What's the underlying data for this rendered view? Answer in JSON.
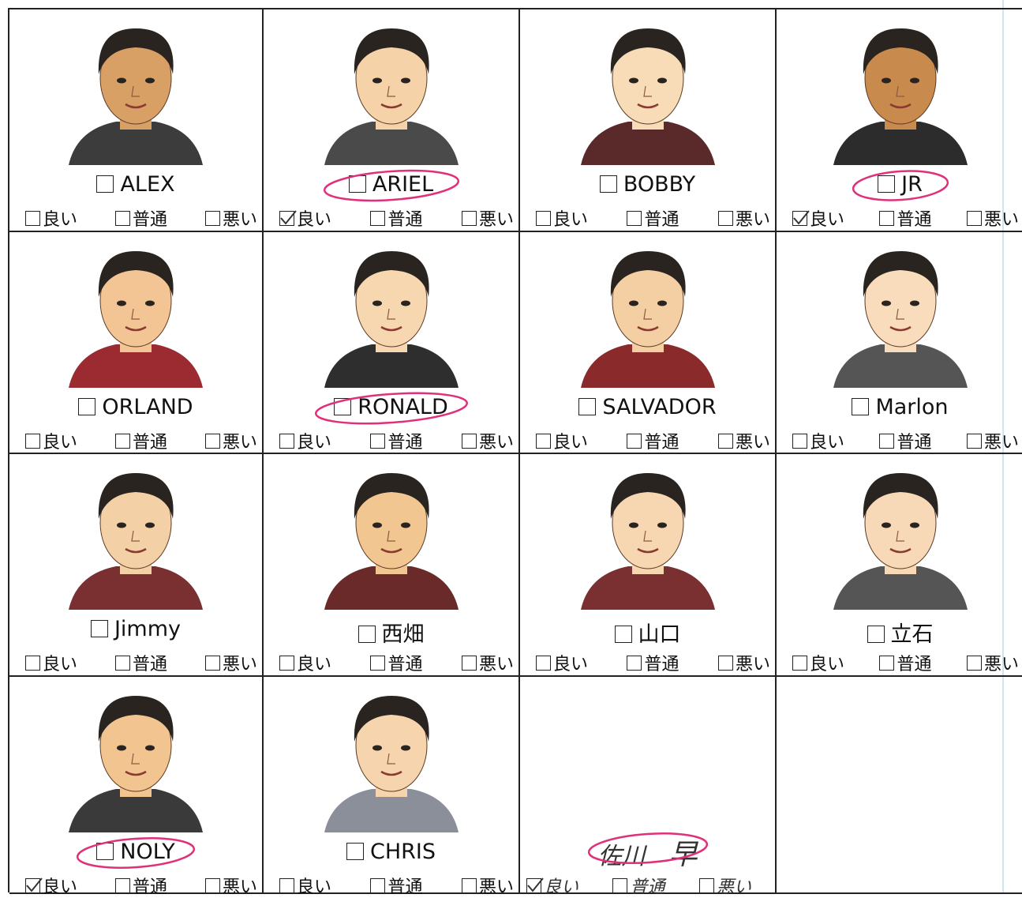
{
  "cards": [
    {
      "name": "ALEX",
      "options": [
        "良い",
        "普通",
        "悪い"
      ],
      "checked": [
        false,
        false,
        false
      ],
      "circled": false
    },
    {
      "name": "ARIEL",
      "options": [
        "良い",
        "普通",
        "悪い"
      ],
      "checked": [
        true,
        false,
        false
      ],
      "circled": true
    },
    {
      "name": "BOBBY",
      "options": [
        "良い",
        "普通",
        "悪い"
      ],
      "checked": [
        false,
        false,
        false
      ],
      "circled": false
    },
    {
      "name": "JR",
      "options": [
        "良い",
        "普通",
        "悪い"
      ],
      "checked": [
        true,
        false,
        false
      ],
      "circled": true
    },
    {
      "name": "ORLAND",
      "options": [
        "良い",
        "普通",
        "悪い"
      ],
      "checked": [
        false,
        false,
        false
      ],
      "circled": false
    },
    {
      "name": "RONALD",
      "options": [
        "良い",
        "普通",
        "悪い"
      ],
      "checked": [
        false,
        false,
        false
      ],
      "circled": true
    },
    {
      "name": "SALVADOR",
      "options": [
        "良い",
        "普通",
        "悪い"
      ],
      "checked": [
        false,
        false,
        false
      ],
      "circled": false
    },
    {
      "name": "Marlon",
      "options": [
        "良い",
        "普通",
        "悪い"
      ],
      "checked": [
        false,
        false,
        false
      ],
      "circled": false
    },
    {
      "name": "Jimmy",
      "options": [
        "良い",
        "普通",
        "悪い"
      ],
      "checked": [
        false,
        false,
        false
      ],
      "circled": false
    },
    {
      "name": "西畑",
      "options": [
        "良い",
        "普通",
        "悪い"
      ],
      "checked": [
        false,
        false,
        false
      ],
      "circled": false
    },
    {
      "name": "山口",
      "options": [
        "良い",
        "普通",
        "悪い"
      ],
      "checked": [
        false,
        false,
        false
      ],
      "circled": false
    },
    {
      "name": "立石",
      "options": [
        "良い",
        "普通",
        "悪い"
      ],
      "checked": [
        false,
        false,
        false
      ],
      "circled": false
    },
    {
      "name": "NOLY",
      "options": [
        "良い",
        "普通",
        "悪い"
      ],
      "checked": [
        true,
        false,
        false
      ],
      "circled": true
    },
    {
      "name": "CHRIS",
      "options": [
        "良い",
        "普通",
        "悪い"
      ],
      "checked": [
        false,
        false,
        false
      ],
      "circled": false
    }
  ],
  "handwritten": {
    "name": "佐川",
    "extra": "早",
    "options": [
      "良い",
      "普通",
      "悪い"
    ],
    "checked": [
      true,
      false,
      false
    ],
    "circled": true
  }
}
